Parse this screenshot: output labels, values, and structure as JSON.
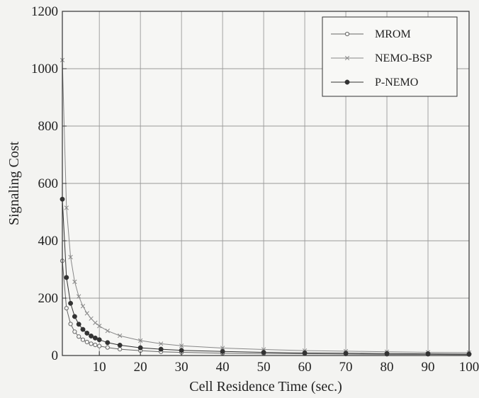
{
  "chart_data": {
    "type": "line",
    "title": "",
    "xlabel": "Cell Residence Time (sec.)",
    "ylabel": "Signaling Cost",
    "xlim": [
      1,
      100
    ],
    "ylim": [
      0,
      1200
    ],
    "xticks": [
      10,
      20,
      30,
      40,
      50,
      60,
      70,
      80,
      90,
      100
    ],
    "yticks": [
      0,
      200,
      400,
      600,
      800,
      1000,
      1200
    ],
    "grid": true,
    "legend_position": "top-right",
    "series": [
      {
        "name": "MROM",
        "marker": "open-circle",
        "color": "#666666",
        "x": [
          1,
          2,
          3,
          4,
          5,
          6,
          7,
          8,
          9,
          10,
          12,
          15,
          20,
          25,
          30,
          40,
          50,
          60,
          70,
          80,
          90,
          100
        ],
        "y": [
          330,
          165,
          110,
          83,
          66,
          55,
          47,
          41,
          37,
          33,
          28,
          22,
          17,
          13,
          11,
          8,
          7,
          6,
          5,
          4,
          4,
          3
        ]
      },
      {
        "name": "NEMO-BSP",
        "marker": "x",
        "color": "#888888",
        "x": [
          1,
          2,
          3,
          4,
          5,
          6,
          7,
          8,
          9,
          10,
          12,
          15,
          20,
          25,
          30,
          40,
          50,
          60,
          70,
          80,
          90,
          100
        ],
        "y": [
          1030,
          515,
          343,
          257,
          206,
          172,
          147,
          129,
          114,
          103,
          86,
          69,
          52,
          41,
          34,
          26,
          21,
          17,
          15,
          13,
          11,
          10
        ]
      },
      {
        "name": "P-NEMO",
        "marker": "filled-circle",
        "color": "#333333",
        "x": [
          1,
          2,
          3,
          4,
          5,
          6,
          7,
          8,
          9,
          10,
          12,
          15,
          20,
          25,
          30,
          40,
          50,
          60,
          70,
          80,
          90,
          100
        ],
        "y": [
          545,
          272,
          182,
          136,
          109,
          91,
          78,
          68,
          61,
          55,
          45,
          36,
          27,
          22,
          18,
          14,
          11,
          9,
          8,
          7,
          6,
          5
        ]
      }
    ]
  }
}
